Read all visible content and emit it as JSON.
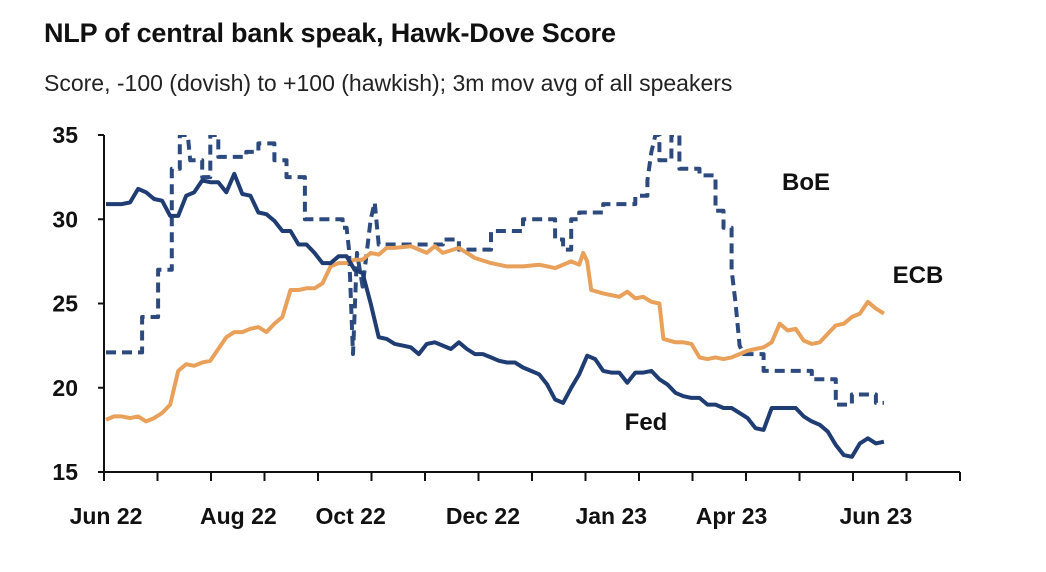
{
  "chart_data": {
    "type": "line",
    "title": "NLP of central bank speak, Hawk-Dove Score",
    "subtitle": "Score, -100 (dovish) to +100 (hawkish); 3m mov avg of all speakers",
    "xlabel": "",
    "ylabel": "",
    "ylim": [
      15,
      35
    ],
    "yticks": [
      15,
      20,
      25,
      30,
      35
    ],
    "xlim": [
      0,
      100
    ],
    "xticks": [
      {
        "label": "Jun 22",
        "x": 0
      },
      {
        "label": "Aug 22",
        "x": 16.5
      },
      {
        "label": "Oct 22",
        "x": 30.5
      },
      {
        "label": "Dec 22",
        "x": 47
      },
      {
        "label": "Jan 23",
        "x": 63
      },
      {
        "label": "Apr 23",
        "x": 78
      },
      {
        "label": "Jun 23",
        "x": 96
      }
    ],
    "legend": "inline labels",
    "series": [
      {
        "name": "BoE",
        "label": "BoE",
        "color": "#2d4a7e",
        "style": "dashed",
        "points": [
          [
            0,
            22.1
          ],
          [
            4.5,
            22.1
          ],
          [
            4.5,
            24.2
          ],
          [
            6.5,
            24.2
          ],
          [
            6.5,
            27
          ],
          [
            8.2,
            27
          ],
          [
            8.2,
            33
          ],
          [
            9.2,
            33
          ],
          [
            9.2,
            35
          ],
          [
            10.2,
            35
          ],
          [
            10.5,
            33.5
          ],
          [
            12,
            33.5
          ],
          [
            12,
            32.5
          ],
          [
            13,
            32.5
          ],
          [
            13,
            35
          ],
          [
            14,
            35
          ],
          [
            14,
            33.7
          ],
          [
            17.5,
            33.7
          ],
          [
            17.5,
            34
          ],
          [
            19,
            34
          ],
          [
            19,
            34.5
          ],
          [
            21,
            34.5
          ],
          [
            21,
            33.5
          ],
          [
            22.5,
            33.5
          ],
          [
            22.5,
            32.5
          ],
          [
            24.8,
            32.5
          ],
          [
            24.8,
            30
          ],
          [
            29.5,
            30
          ],
          [
            29.5,
            29.5
          ],
          [
            30,
            29.5
          ],
          [
            30.3,
            28.2
          ],
          [
            30.8,
            22
          ],
          [
            31.3,
            28
          ],
          [
            32,
            26
          ],
          [
            32.5,
            28
          ],
          [
            33,
            30
          ],
          [
            33.5,
            31
          ],
          [
            34,
            28.5
          ],
          [
            42,
            28.5
          ],
          [
            42,
            28.8
          ],
          [
            44,
            28.8
          ],
          [
            44,
            28.2
          ],
          [
            48,
            28.2
          ],
          [
            48,
            29.3
          ],
          [
            52,
            29.3
          ],
          [
            52,
            30
          ],
          [
            56,
            30
          ],
          [
            56,
            28.8
          ],
          [
            57,
            28.8
          ],
          [
            57,
            28.2
          ],
          [
            58,
            28.2
          ],
          [
            58,
            30
          ],
          [
            59,
            30
          ],
          [
            59,
            30.4
          ],
          [
            62,
            30.4
          ],
          [
            62,
            30.9
          ],
          [
            66,
            30.9
          ],
          [
            66,
            31.4
          ],
          [
            67.5,
            31.4
          ],
          [
            67.5,
            32.3
          ],
          [
            68,
            34
          ],
          [
            68.5,
            35
          ],
          [
            69,
            35
          ],
          [
            69,
            33.5
          ],
          [
            70.5,
            33.5
          ],
          [
            70.5,
            35
          ],
          [
            71.5,
            35
          ],
          [
            71.5,
            33
          ],
          [
            74,
            33
          ],
          [
            74,
            32.6
          ],
          [
            76,
            32.6
          ],
          [
            76,
            30.5
          ],
          [
            77,
            30.5
          ],
          [
            77,
            29.5
          ],
          [
            78,
            29.5
          ],
          [
            78,
            27
          ],
          [
            78.5,
            25
          ],
          [
            79,
            22.5
          ],
          [
            79.5,
            22
          ],
          [
            82,
            22
          ],
          [
            82,
            21
          ],
          [
            88,
            21
          ],
          [
            88,
            20.5
          ],
          [
            91,
            20.5
          ],
          [
            91,
            19
          ],
          [
            93,
            19
          ],
          [
            93,
            19.6
          ],
          [
            96,
            19.6
          ],
          [
            96,
            19.1
          ],
          [
            97,
            19.1
          ]
        ]
      },
      {
        "name": "ECB",
        "label": "ECB",
        "color": "#e8a05a",
        "style": "solid",
        "points": [
          [
            0,
            18.1
          ],
          [
            1,
            18.3
          ],
          [
            2,
            18.3
          ],
          [
            3,
            18.2
          ],
          [
            4,
            18.3
          ],
          [
            5,
            18
          ],
          [
            6,
            18.2
          ],
          [
            7,
            18.5
          ],
          [
            8,
            19
          ],
          [
            9,
            21
          ],
          [
            10,
            21.4
          ],
          [
            11,
            21.3
          ],
          [
            12,
            21.5
          ],
          [
            13,
            21.6
          ],
          [
            14,
            22.3
          ],
          [
            15,
            23
          ],
          [
            16,
            23.3
          ],
          [
            17,
            23.3
          ],
          [
            18,
            23.5
          ],
          [
            19,
            23.6
          ],
          [
            20,
            23.3
          ],
          [
            21,
            23.8
          ],
          [
            22,
            24.2
          ],
          [
            23,
            25.8
          ],
          [
            24,
            25.8
          ],
          [
            25,
            25.9
          ],
          [
            26,
            25.9
          ],
          [
            27,
            26.2
          ],
          [
            28,
            27.2
          ],
          [
            29,
            27.4
          ],
          [
            30,
            27.4
          ],
          [
            31,
            27.6
          ],
          [
            32,
            27.6
          ],
          [
            33,
            28
          ],
          [
            34,
            27.9
          ],
          [
            35,
            28.3
          ],
          [
            36,
            28.3
          ],
          [
            38,
            28.4
          ],
          [
            40,
            28
          ],
          [
            41,
            28.4
          ],
          [
            42,
            28
          ],
          [
            44,
            28.3
          ],
          [
            46,
            27.7
          ],
          [
            48,
            27.4
          ],
          [
            50,
            27.2
          ],
          [
            52,
            27.2
          ],
          [
            54,
            27.3
          ],
          [
            56,
            27.1
          ],
          [
            58,
            27.5
          ],
          [
            59,
            27.3
          ],
          [
            59.5,
            28
          ],
          [
            60,
            27.5
          ],
          [
            60.5,
            25.8
          ],
          [
            62,
            25.6
          ],
          [
            64,
            25.4
          ],
          [
            65,
            25.7
          ],
          [
            66,
            25.3
          ],
          [
            67,
            25.4
          ],
          [
            68,
            25.1
          ],
          [
            69,
            25
          ],
          [
            69.5,
            22.9
          ],
          [
            71,
            22.7
          ],
          [
            72,
            22.7
          ],
          [
            73,
            22.6
          ],
          [
            74,
            21.8
          ],
          [
            75,
            21.7
          ],
          [
            76,
            21.8
          ],
          [
            77,
            21.7
          ],
          [
            78,
            21.8
          ],
          [
            79,
            22
          ],
          [
            80,
            22.2
          ],
          [
            81,
            22.3
          ],
          [
            82,
            22.4
          ],
          [
            83,
            22.7
          ],
          [
            84,
            23.8
          ],
          [
            85,
            23.4
          ],
          [
            86,
            23.5
          ],
          [
            87,
            22.8
          ],
          [
            88,
            22.6
          ],
          [
            89,
            22.7
          ],
          [
            90,
            23.2
          ],
          [
            91,
            23.7
          ],
          [
            92,
            23.8
          ],
          [
            93,
            24.2
          ],
          [
            94,
            24.4
          ],
          [
            95,
            25.1
          ],
          [
            96,
            24.7
          ],
          [
            97,
            24.4
          ]
        ]
      },
      {
        "name": "Fed",
        "label": "Fed",
        "color": "#1f3c73",
        "style": "solid",
        "points": [
          [
            0,
            30.9
          ],
          [
            2,
            30.9
          ],
          [
            3,
            31
          ],
          [
            4,
            31.8
          ],
          [
            5,
            31.6
          ],
          [
            6,
            31.2
          ],
          [
            7,
            31.1
          ],
          [
            8,
            30.2
          ],
          [
            9,
            30.2
          ],
          [
            10,
            31.4
          ],
          [
            11,
            31.6
          ],
          [
            12,
            32.3
          ],
          [
            13,
            32.2
          ],
          [
            14,
            32.2
          ],
          [
            15,
            31.6
          ],
          [
            16,
            32.7
          ],
          [
            17,
            31.5
          ],
          [
            18,
            31.4
          ],
          [
            19,
            30.4
          ],
          [
            20,
            30.3
          ],
          [
            21,
            29.9
          ],
          [
            22,
            29.3
          ],
          [
            23,
            29.3
          ],
          [
            24,
            28.5
          ],
          [
            25,
            28.5
          ],
          [
            26,
            28
          ],
          [
            27,
            27.4
          ],
          [
            28,
            27.4
          ],
          [
            29,
            27.8
          ],
          [
            30,
            27.8
          ],
          [
            31,
            27
          ],
          [
            32,
            26.8
          ],
          [
            33,
            25
          ],
          [
            34,
            23
          ],
          [
            35,
            22.9
          ],
          [
            36,
            22.6
          ],
          [
            37,
            22.5
          ],
          [
            38,
            22.4
          ],
          [
            39,
            22
          ],
          [
            40,
            22.6
          ],
          [
            41,
            22.7
          ],
          [
            42,
            22.5
          ],
          [
            43,
            22.3
          ],
          [
            44,
            22.7
          ],
          [
            45,
            22.3
          ],
          [
            46,
            22
          ],
          [
            47,
            22
          ],
          [
            48,
            21.8
          ],
          [
            49,
            21.6
          ],
          [
            50,
            21.5
          ],
          [
            51,
            21.5
          ],
          [
            52,
            21.2
          ],
          [
            53,
            21
          ],
          [
            54,
            20.8
          ],
          [
            55,
            20.2
          ],
          [
            56,
            19.3
          ],
          [
            57,
            19.1
          ],
          [
            58,
            20
          ],
          [
            59,
            20.8
          ],
          [
            60,
            21.9
          ],
          [
            61,
            21.7
          ],
          [
            62,
            21
          ],
          [
            63,
            20.9
          ],
          [
            64,
            20.9
          ],
          [
            65,
            20.3
          ],
          [
            66,
            20.9
          ],
          [
            67,
            20.9
          ],
          [
            68,
            21
          ],
          [
            69,
            20.5
          ],
          [
            70,
            20.2
          ],
          [
            71,
            19.7
          ],
          [
            72,
            19.5
          ],
          [
            73,
            19.4
          ],
          [
            74,
            19.4
          ],
          [
            75,
            19
          ],
          [
            76,
            19
          ],
          [
            77,
            18.8
          ],
          [
            78,
            18.8
          ],
          [
            79,
            18.5
          ],
          [
            80,
            18.2
          ],
          [
            81,
            17.6
          ],
          [
            82,
            17.5
          ],
          [
            83,
            18.8
          ],
          [
            84,
            18.8
          ],
          [
            85,
            18.8
          ],
          [
            86,
            18.8
          ],
          [
            87,
            18.3
          ],
          [
            88,
            18
          ],
          [
            89,
            17.8
          ],
          [
            90,
            17.4
          ],
          [
            91,
            16.6
          ],
          [
            92,
            16
          ],
          [
            93,
            15.9
          ],
          [
            94,
            16.7
          ],
          [
            95,
            17
          ],
          [
            96,
            16.7
          ],
          [
            97,
            16.8
          ]
        ]
      }
    ]
  }
}
